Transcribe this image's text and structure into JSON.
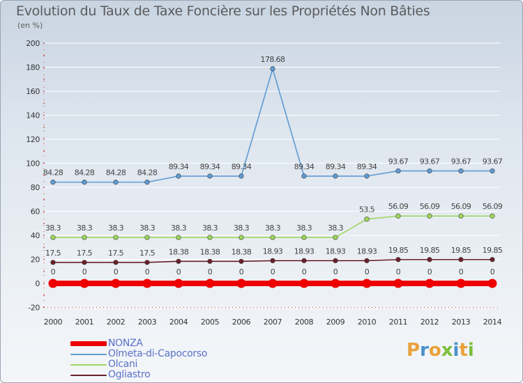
{
  "title": "Evolution du Taux de Taxe Foncière sur les Propriétés Non Bâties",
  "unit_label": "(en %)",
  "logo": {
    "text": "Proxiti",
    "colors": [
      "#e8a23a",
      "#4a90c8",
      "#e8a23a",
      "#7bbf3a",
      "#4a90c8",
      "#e8a23a",
      "#7bbf3a"
    ]
  },
  "chart_data": {
    "type": "line",
    "title": "Evolution du Taux de Taxe Foncière sur les Propriétés Non Bâties",
    "ylabel": "(en %)",
    "xlabel": "",
    "ylim": [
      -20,
      200
    ],
    "yticks": [
      -20,
      0,
      20,
      40,
      60,
      80,
      100,
      120,
      140,
      160,
      180,
      200
    ],
    "x": [
      "2000",
      "2001",
      "2002",
      "2003",
      "2004",
      "2005",
      "2006",
      "2007",
      "2008",
      "2009",
      "2010",
      "2011",
      "2012",
      "2013",
      "2014"
    ],
    "grid": "horizontal",
    "legend_position": "bottom-left",
    "series": [
      {
        "name": "NONZA",
        "color": "#ee0000",
        "thick": true,
        "values": [
          0,
          0,
          0,
          0,
          0,
          0,
          0,
          0,
          0,
          0,
          0,
          0,
          0,
          0,
          0
        ],
        "labels": [
          "0",
          "0",
          "0",
          "0",
          "0",
          "0",
          "0",
          "0",
          "0",
          "0",
          "0",
          "0",
          "0",
          "0",
          "0"
        ]
      },
      {
        "name": "Olmeta-di-Capocorso",
        "color": "#5f9bd3",
        "thick": false,
        "values": [
          84.28,
          84.28,
          84.28,
          84.28,
          89.34,
          89.34,
          89.34,
          178.68,
          89.34,
          89.34,
          89.34,
          93.67,
          93.67,
          93.67,
          93.67
        ],
        "labels": [
          "84.28",
          "84.28",
          "84.28",
          "84.28",
          "89.34",
          "89.34",
          "89.34",
          "178.68",
          "89.34",
          "89.34",
          "89.34",
          "93.67",
          "93.67",
          "93.67",
          "93.67"
        ]
      },
      {
        "name": "Olcani",
        "color": "#9ed65a",
        "thick": false,
        "values": [
          38.3,
          38.3,
          38.3,
          38.3,
          38.3,
          38.3,
          38.3,
          38.3,
          38.3,
          38.3,
          53.5,
          56.09,
          56.09,
          56.09,
          56.09
        ],
        "labels": [
          "38.3",
          "38.3",
          "38.3",
          "38.3",
          "38.3",
          "38.3",
          "38.3",
          "38.3",
          "38.3",
          "38.3",
          "53.5",
          "56.09",
          "56.09",
          "56.09",
          "56.09"
        ]
      },
      {
        "name": "Ogliastro",
        "color": "#6b1f2a",
        "thick": false,
        "values": [
          17.5,
          17.5,
          17.5,
          17.5,
          18.38,
          18.38,
          18.38,
          18.93,
          18.93,
          18.93,
          18.93,
          19.85,
          19.85,
          19.85,
          19.85
        ],
        "labels": [
          "17.5",
          "17.5",
          "17.5",
          "17.5",
          "18.38",
          "18.38",
          "18.38",
          "18.93",
          "18.93",
          "18.93",
          "18.93",
          "19.85",
          "19.85",
          "19.85",
          "19.85"
        ]
      }
    ]
  }
}
